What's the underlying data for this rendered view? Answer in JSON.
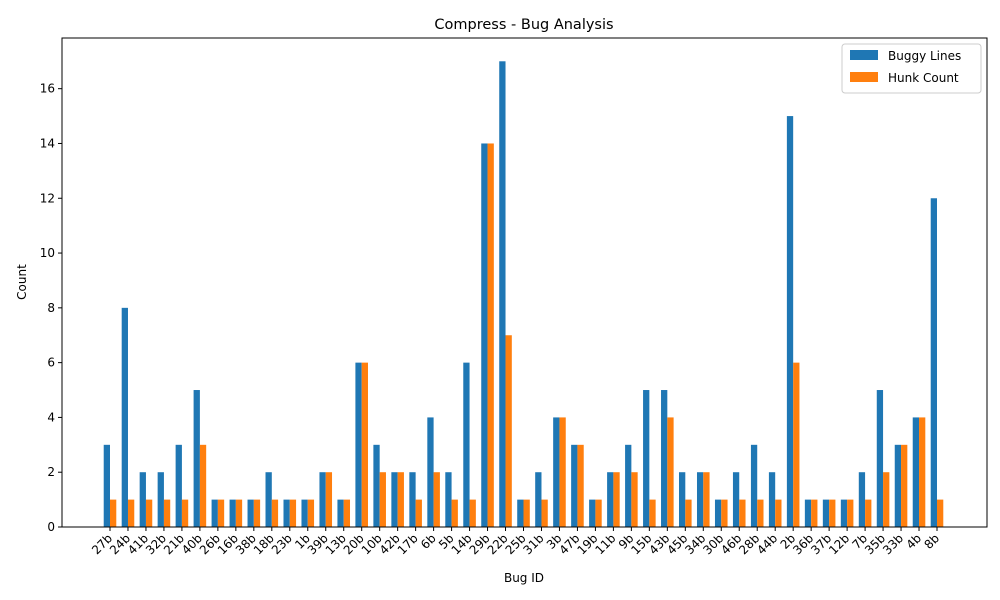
{
  "chart_data": {
    "type": "bar",
    "title": "Compress - Bug Analysis",
    "xlabel": "Bug ID",
    "ylabel": "Count",
    "ylim": [
      0,
      17.85
    ],
    "yticks": [
      0,
      2,
      4,
      6,
      8,
      10,
      12,
      14,
      16
    ],
    "grid": false,
    "legend_position": "top-right",
    "categories": [
      "27b",
      "24b",
      "41b",
      "32b",
      "21b",
      "40b",
      "26b",
      "16b",
      "38b",
      "18b",
      "23b",
      "1b",
      "39b",
      "13b",
      "20b",
      "10b",
      "42b",
      "17b",
      "6b",
      "5b",
      "14b",
      "29b",
      "22b",
      "25b",
      "31b",
      "3b",
      "47b",
      "19b",
      "11b",
      "9b",
      "15b",
      "43b",
      "45b",
      "34b",
      "30b",
      "46b",
      "28b",
      "44b",
      "2b",
      "36b",
      "37b",
      "12b",
      "7b",
      "35b",
      "33b",
      "4b",
      "8b"
    ],
    "series": [
      {
        "name": "Buggy Lines",
        "color": "#1f77b4",
        "values": [
          3,
          8,
          2,
          2,
          3,
          5,
          1,
          1,
          1,
          2,
          1,
          1,
          2,
          1,
          6,
          3,
          2,
          2,
          4,
          2,
          6,
          14,
          17,
          1,
          2,
          4,
          3,
          1,
          2,
          3,
          5,
          5,
          2,
          2,
          1,
          2,
          3,
          2,
          15,
          1,
          1,
          1,
          2,
          5,
          3,
          4,
          12
        ]
      },
      {
        "name": "Hunk Count",
        "color": "#ff7f0e",
        "values": [
          1,
          1,
          1,
          1,
          1,
          3,
          1,
          1,
          1,
          1,
          1,
          1,
          2,
          1,
          6,
          2,
          2,
          1,
          2,
          1,
          1,
          14,
          7,
          1,
          1,
          4,
          3,
          1,
          2,
          2,
          1,
          4,
          1,
          2,
          1,
          1,
          1,
          1,
          6,
          1,
          1,
          1,
          1,
          2,
          3,
          4,
          1
        ]
      }
    ]
  }
}
